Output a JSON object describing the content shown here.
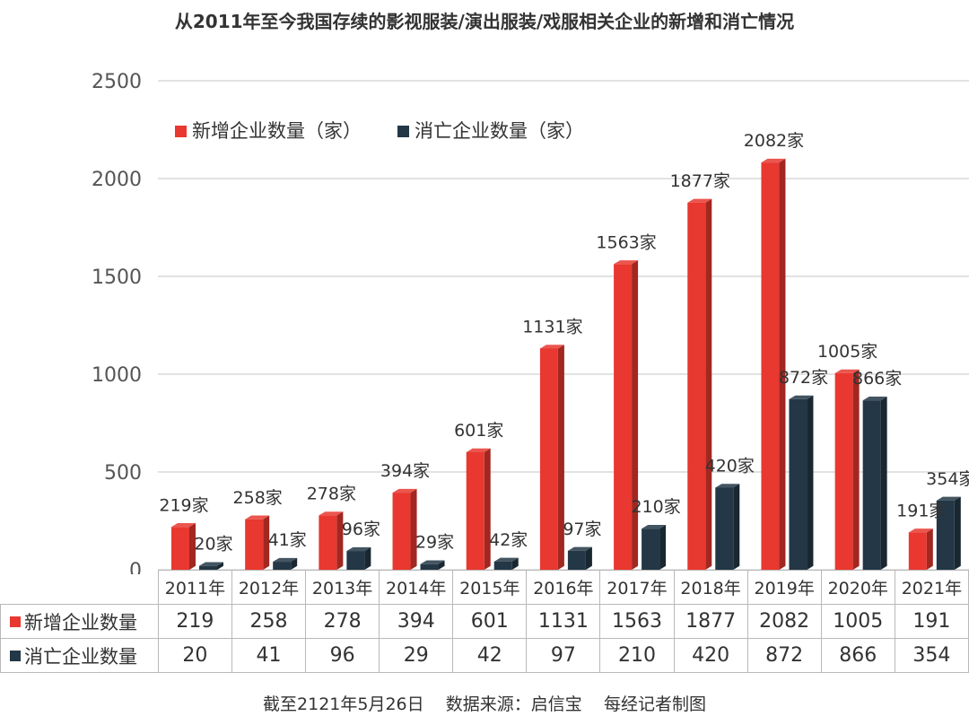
{
  "title": "从2011年至今我国存续的影视服装/演出服装/戏服相关企业的新增和消亡情况",
  "footer": "截至2121年5月26日    数据来源：启信宝    每经记者制图",
  "colors": {
    "new": "#e8382f",
    "closed": "#233746",
    "grid": "#d9d9d9"
  },
  "chart_data": {
    "type": "bar",
    "categories": [
      "2011年",
      "2012年",
      "2013年",
      "2014年",
      "2015年",
      "2016年",
      "2017年",
      "2018年",
      "2019年",
      "2020年",
      "2021年"
    ],
    "series": [
      {
        "name": "新增企业数量（家）",
        "table_label": "新增企业数量",
        "values": [
          219,
          258,
          278,
          394,
          601,
          1131,
          1563,
          1877,
          2082,
          1005,
          191
        ],
        "labels": [
          "219家",
          "258家",
          "278家",
          "394家",
          "601家",
          "1131家",
          "1563家",
          "1877家",
          "2082家",
          "1005家",
          "191家"
        ]
      },
      {
        "name": "消亡企业数量（家）",
        "table_label": "消亡企业数量",
        "values": [
          20,
          41,
          96,
          29,
          42,
          97,
          210,
          420,
          872,
          866,
          354
        ],
        "labels": [
          "20家",
          "41家",
          "96家",
          "29家",
          "42家",
          "97家",
          "210家",
          "420家",
          "872家",
          "866家",
          "354家"
        ]
      }
    ],
    "ylim": [
      0,
      2500
    ],
    "yticks": [
      0,
      500,
      1000,
      1500,
      2000,
      2500
    ],
    "grid": true,
    "legend_position": "top-left"
  }
}
